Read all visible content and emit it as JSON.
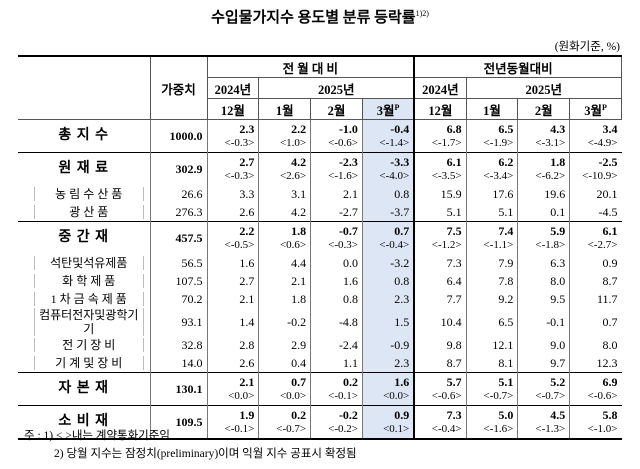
{
  "header": {
    "title": "수입물가지수 용도별 분류 등락률",
    "title_note": "1)2)",
    "unit": "(원화기준, %)"
  },
  "table": {
    "weight_header": "가중치",
    "groups": [
      {
        "label": "전 월 대 비",
        "years": [
          {
            "label": "2024년",
            "months": [
              {
                "label": "12월"
              }
            ]
          },
          {
            "label": "2025년",
            "months": [
              {
                "label": "1월"
              },
              {
                "label": "2월"
              },
              {
                "label": "3월",
                "sup": "P"
              }
            ]
          }
        ]
      },
      {
        "label": "전년동월대비",
        "years": [
          {
            "label": "2024년",
            "months": [
              {
                "label": "12월"
              }
            ]
          },
          {
            "label": "2025년",
            "months": [
              {
                "label": "1월"
              },
              {
                "label": "2월"
              },
              {
                "label": "3월",
                "sup": "P"
              }
            ]
          }
        ]
      }
    ],
    "rows": [
      {
        "label": "총 지 수",
        "weight": "1000.0",
        "values": [
          "2.3",
          "2.2",
          "-1.0",
          "-0.4",
          "6.8",
          "6.5",
          "4.3",
          "3.4"
        ],
        "contract": [
          "<-0.3>",
          "<1.0>",
          "<-0.6>",
          "<-1.4>",
          "<-1.7>",
          "<-1.9>",
          "<-3.1>",
          "<-4.9>"
        ],
        "children": []
      },
      {
        "label": "원 재 료",
        "weight": "302.9",
        "values": [
          "2.7",
          "4.2",
          "-2.3",
          "-3.3",
          "6.1",
          "6.2",
          "1.8",
          "-2.5"
        ],
        "contract": [
          "<-0.3>",
          "<2.6>",
          "<-1.6>",
          "<-4.0>",
          "<-3.5>",
          "<-3.4>",
          "<-6.2>",
          "<-10.9>"
        ],
        "children": [
          {
            "label": "농 림 수 산 품",
            "weight": "26.6",
            "values": [
              "3.3",
              "3.1",
              "2.1",
              "0.8",
              "15.9",
              "17.6",
              "19.6",
              "20.1"
            ]
          },
          {
            "label": "광 산 품",
            "weight": "276.3",
            "values": [
              "2.6",
              "4.2",
              "-2.7",
              "-3.7",
              "5.1",
              "5.1",
              "0.1",
              "-4.5"
            ]
          }
        ]
      },
      {
        "label": "중 간 재",
        "weight": "457.5",
        "values": [
          "2.2",
          "1.8",
          "-0.7",
          "0.7",
          "7.5",
          "7.4",
          "5.9",
          "6.1"
        ],
        "contract": [
          "<-0.5>",
          "<0.6>",
          "<-0.3>",
          "<-0.4>",
          "<-1.2>",
          "<-1.1>",
          "<-1.8>",
          "<-2.7>"
        ],
        "children": [
          {
            "label": "석탄및석유제품",
            "weight": "56.5",
            "values": [
              "1.6",
              "4.4",
              "0.0",
              "-3.2",
              "7.3",
              "7.9",
              "6.3",
              "0.9"
            ]
          },
          {
            "label": "화 학 제 품",
            "weight": "107.5",
            "values": [
              "2.7",
              "2.1",
              "1.6",
              "0.8",
              "6.4",
              "7.8",
              "8.0",
              "8.7"
            ]
          },
          {
            "label": "1 차 금 속 제 품",
            "weight": "70.2",
            "values": [
              "2.1",
              "1.8",
              "0.8",
              "2.3",
              "7.7",
              "9.2",
              "9.5",
              "11.7"
            ]
          },
          {
            "label": "컴퓨터전자및광학기기",
            "weight": "93.1",
            "values": [
              "1.4",
              "-0.2",
              "-4.8",
              "1.5",
              "10.4",
              "6.5",
              "-0.1",
              "0.7"
            ]
          },
          {
            "label": "전 기 장 비",
            "weight": "32.8",
            "values": [
              "2.8",
              "2.9",
              "-2.4",
              "-0.9",
              "9.8",
              "12.1",
              "9.0",
              "8.0"
            ]
          },
          {
            "label": "기 계 및 장 비",
            "weight": "14.0",
            "values": [
              "2.6",
              "0.4",
              "1.1",
              "2.3",
              "8.7",
              "8.1",
              "9.7",
              "12.3"
            ]
          }
        ]
      },
      {
        "label": "자 본 재",
        "weight": "130.1",
        "values": [
          "2.1",
          "0.7",
          "0.2",
          "1.6",
          "5.7",
          "5.1",
          "5.2",
          "6.9"
        ],
        "contract": [
          "<0.0>",
          "<0.0>",
          "<-0.1>",
          "<0.0>",
          "<-0.6>",
          "<-0.7>",
          "<-0.7>",
          "<-0.6>"
        ],
        "children": []
      },
      {
        "label": "소 비 재",
        "weight": "109.5",
        "values": [
          "1.9",
          "0.2",
          "-0.2",
          "0.9",
          "7.3",
          "5.0",
          "4.5",
          "5.8"
        ],
        "contract": [
          "<-0.1>",
          "<-0.7>",
          "<-0.2>",
          "<0.1>",
          "<-0.4>",
          "<-1.6>",
          "<-1.3>",
          "<-1.0>"
        ],
        "children": []
      }
    ]
  },
  "footnotes": {
    "prefix": "주 :",
    "items": [
      "1) < >내는 계약통화기준임",
      "2) 당월 지수는 잠정치(preliminary)이며 익월 지수 공표시 확정됨"
    ]
  }
}
